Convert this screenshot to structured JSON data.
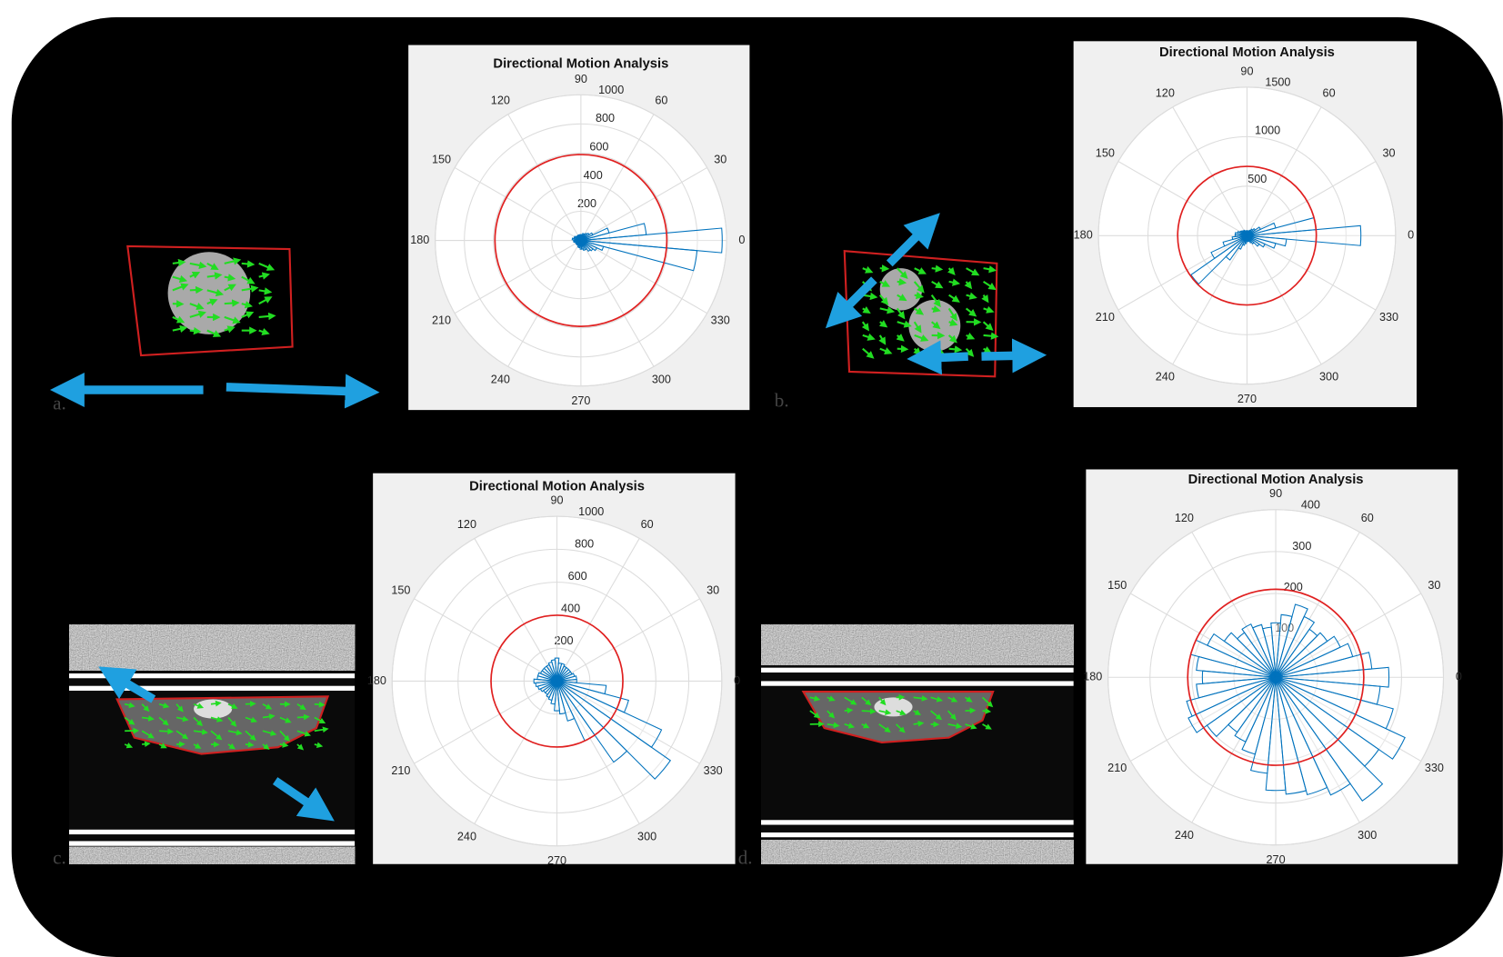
{
  "chart_data": [
    {
      "type": "polar_histogram",
      "title": "Directional Motion Analysis",
      "panel_label": "a.",
      "bar_color": "#0072bd",
      "threshold_color": "#e02020",
      "threshold": 590,
      "x": [
        0,
        10,
        20,
        30,
        40,
        50,
        60,
        70,
        80,
        90,
        100,
        110,
        120,
        130,
        140,
        150,
        160,
        170,
        180,
        190,
        200,
        210,
        220,
        230,
        240,
        250,
        260,
        270,
        280,
        290,
        300,
        310,
        320,
        330,
        340,
        350
      ],
      "values": [
        970,
        450,
        200,
        90,
        70,
        60,
        50,
        50,
        40,
        40,
        40,
        40,
        40,
        40,
        40,
        50,
        50,
        60,
        50,
        50,
        40,
        40,
        40,
        40,
        40,
        50,
        50,
        60,
        60,
        70,
        70,
        90,
        100,
        120,
        160,
        800
      ],
      "rlim": [
        0,
        1000
      ],
      "rticks": [
        200,
        400,
        600,
        800,
        1000
      ],
      "thetaticks": [
        0,
        30,
        60,
        90,
        120,
        150,
        180,
        210,
        240,
        270,
        300,
        330
      ]
    },
    {
      "type": "polar_histogram",
      "title": "Directional Motion Analysis",
      "panel_label": "b.",
      "bar_color": "#0072bd",
      "threshold_color": "#e02020",
      "threshold": 700,
      "x": [
        0,
        10,
        20,
        30,
        40,
        50,
        60,
        70,
        80,
        90,
        100,
        110,
        120,
        130,
        140,
        150,
        160,
        170,
        180,
        190,
        200,
        210,
        220,
        230,
        240,
        250,
        260,
        270,
        280,
        290,
        300,
        310,
        320,
        330,
        340,
        350
      ],
      "values": [
        1150,
        700,
        300,
        150,
        100,
        80,
        60,
        50,
        50,
        50,
        50,
        50,
        60,
        60,
        70,
        80,
        100,
        120,
        120,
        150,
        250,
        400,
        690,
        300,
        150,
        100,
        80,
        60,
        60,
        60,
        80,
        100,
        150,
        200,
        300,
        400
      ],
      "rlim": [
        0,
        1500
      ],
      "rticks": [
        500,
        1000,
        1500
      ],
      "thetaticks": [
        0,
        30,
        60,
        90,
        120,
        150,
        180,
        210,
        240,
        270,
        300,
        330
      ]
    },
    {
      "type": "polar_histogram",
      "title": "Directional Motion Analysis",
      "panel_label": "c.",
      "bar_color": "#0072bd",
      "threshold_color": "#e02020",
      "threshold": 400,
      "x": [
        0,
        10,
        20,
        30,
        40,
        50,
        60,
        70,
        80,
        90,
        100,
        110,
        120,
        130,
        140,
        150,
        160,
        170,
        180,
        190,
        200,
        210,
        220,
        230,
        240,
        250,
        260,
        270,
        280,
        290,
        300,
        310,
        320,
        330,
        340,
        350
      ],
      "values": [
        120,
        120,
        110,
        100,
        100,
        100,
        100,
        110,
        110,
        140,
        130,
        120,
        110,
        110,
        110,
        110,
        120,
        120,
        140,
        130,
        120,
        110,
        100,
        100,
        110,
        120,
        140,
        180,
        200,
        250,
        400,
        600,
        840,
        700,
        450,
        300
      ],
      "rlim": [
        0,
        1000
      ],
      "rticks": [
        200,
        400,
        600,
        800,
        1000
      ],
      "thetaticks": [
        0,
        30,
        60,
        90,
        120,
        150,
        180,
        210,
        240,
        270,
        300,
        330
      ]
    },
    {
      "type": "polar_histogram",
      "title": "Directional Motion Analysis",
      "panel_label": "d.",
      "bar_color": "#0072bd",
      "threshold_color": "#e02020",
      "threshold": 210,
      "x": [
        0,
        10,
        20,
        30,
        40,
        50,
        60,
        70,
        80,
        90,
        100,
        110,
        120,
        130,
        140,
        150,
        160,
        170,
        180,
        190,
        200,
        210,
        220,
        230,
        240,
        250,
        260,
        270,
        280,
        290,
        300,
        310,
        320,
        330,
        340,
        350
      ],
      "values": [
        270,
        230,
        190,
        170,
        150,
        140,
        160,
        180,
        150,
        130,
        120,
        130,
        140,
        130,
        150,
        180,
        210,
        190,
        175,
        190,
        220,
        230,
        200,
        160,
        170,
        190,
        230,
        270,
        280,
        290,
        310,
        360,
        300,
        340,
        290,
        250
      ],
      "rlim": [
        0,
        400
      ],
      "rticks": [
        100,
        200,
        300,
        400
      ],
      "thetaticks": [
        0,
        30,
        60,
        90,
        120,
        150,
        180,
        210,
        240,
        270,
        300,
        330
      ]
    }
  ]
}
